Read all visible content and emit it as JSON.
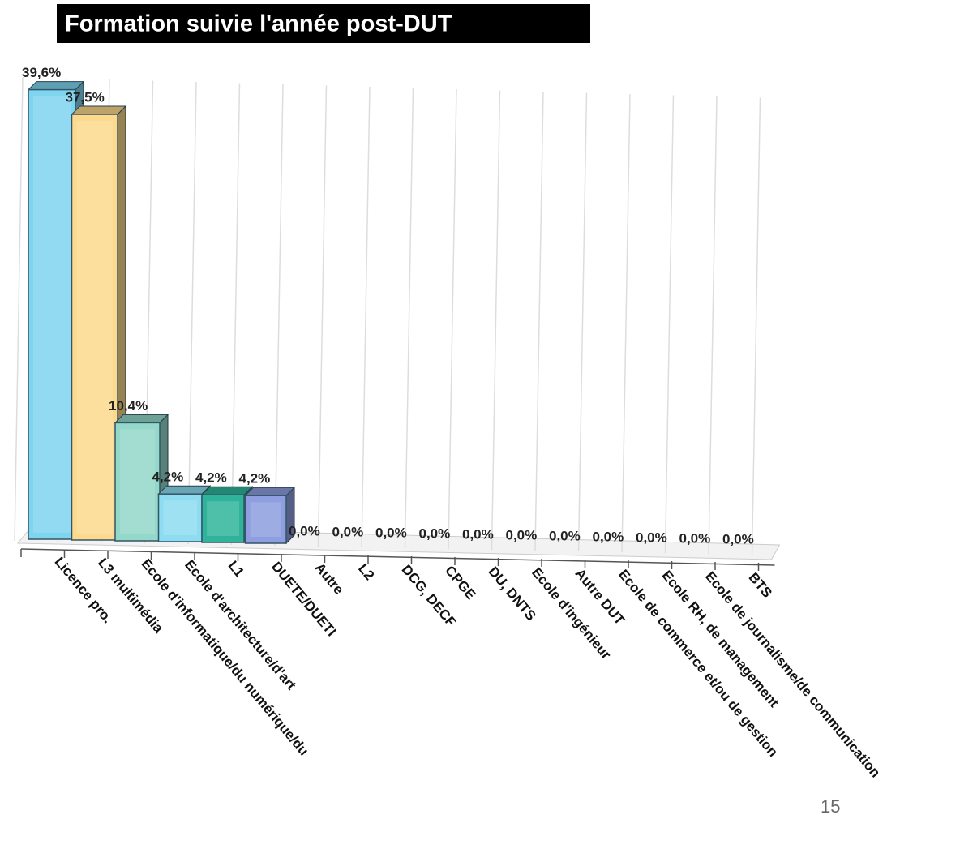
{
  "chart_data": {
    "type": "bar3d",
    "title": "Formation suivie l'année post-DUT",
    "categories": [
      "Licence pro.",
      "L3 multimédia",
      "Ecole d'informatique/du numérique/du",
      "Ecole d'architecture/d'art",
      "L1",
      "DUETE/DUETI",
      "Autre",
      "L2",
      "DCG, DECF",
      "CPGE",
      "DU, DNTS",
      "Ecole d'ingénieur",
      "Autre DUT",
      "Ecole de commerce et/ou de gestion",
      "Ecole RH, de management",
      "Ecole de journalisme/de communication",
      "BTS"
    ],
    "values": [
      39.6,
      37.5,
      10.4,
      4.2,
      4.2,
      4.2,
      0,
      0,
      0,
      0,
      0,
      0,
      0,
      0,
      0,
      0,
      0
    ],
    "value_labels": [
      "39,6%",
      "37,5%",
      "10,4%",
      "4,2%",
      "4,2%",
      "4,2%",
      "0,0%",
      "0,0%",
      "0,0%",
      "0,0%",
      "0,0%",
      "0,0%",
      "0,0%",
      "0,0%",
      "0,0%",
      "0,0%",
      "0,0%"
    ],
    "colors": [
      "#7fd4ef",
      "#fcd98c",
      "#93d8c9",
      "#8ddcf1",
      "#2fb49b",
      "#8e9ee0",
      "#cccccc",
      "#cccccc",
      "#cccccc",
      "#cccccc",
      "#cccccc",
      "#cccccc",
      "#cccccc",
      "#cccccc",
      "#cccccc",
      "#cccccc",
      "#cccccc"
    ],
    "ylim": [
      0,
      40
    ]
  },
  "page_number": "15"
}
